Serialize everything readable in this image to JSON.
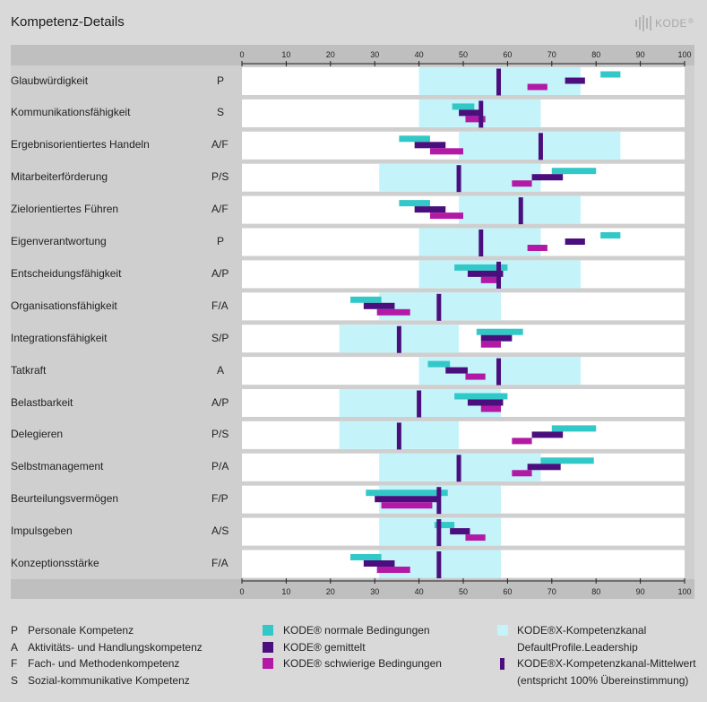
{
  "title": "Kompetenz-Details",
  "logo_text": "KODE",
  "logo_sup": "®",
  "colors": {
    "panel": "#cfcfcf",
    "axis_bar": "#bfbfbf",
    "row_bg": "#ffffff",
    "channel": "#c4f4fa",
    "normal": "#33c8c8",
    "average": "#4b0f7d",
    "difficult": "#b21aa6",
    "channel_mean": "#4b0f7d"
  },
  "chart_data": {
    "type": "bar",
    "xlim": [
      0,
      100
    ],
    "ticks": [
      "0",
      "10",
      "20",
      "30",
      "40",
      "50",
      "60",
      "70",
      "80",
      "90",
      "100"
    ],
    "rows": [
      {
        "label": "Glaubwürdigkeit",
        "code": "P",
        "channel": [
          40,
          76.5
        ],
        "mean": 58,
        "normal": [
          81,
          85.5
        ],
        "average": [
          73,
          77.5
        ],
        "difficult": [
          64.5,
          69
        ]
      },
      {
        "label": "Kommunikationsfähigkeit",
        "code": "S",
        "channel": [
          40,
          67.5
        ],
        "mean": 54,
        "normal": [
          47.5,
          52.5
        ],
        "average": [
          49,
          54
        ],
        "difficult": [
          50.5,
          55
        ]
      },
      {
        "label": "Ergebnisorientiertes Handeln",
        "code": "A/F",
        "channel": [
          49,
          85.5
        ],
        "mean": 67.5,
        "normal": [
          35.5,
          42.5
        ],
        "average": [
          39,
          46
        ],
        "difficult": [
          42.5,
          50
        ]
      },
      {
        "label": "Mitarbeiterförderung",
        "code": "P/S",
        "channel": [
          31,
          67.5
        ],
        "mean": 49,
        "normal": [
          70,
          80
        ],
        "average": [
          65.5,
          72.5
        ],
        "difficult": [
          61,
          65.5
        ]
      },
      {
        "label": "Zielorientiertes Führen",
        "code": "A/F",
        "channel": [
          49,
          76.5
        ],
        "mean": 63,
        "normal": [
          35.5,
          42.5
        ],
        "average": [
          39,
          46
        ],
        "difficult": [
          42.5,
          50
        ]
      },
      {
        "label": "Eigenverantwortung",
        "code": "P",
        "channel": [
          40,
          67.5
        ],
        "mean": 54,
        "normal": [
          81,
          85.5
        ],
        "average": [
          73,
          77.5
        ],
        "difficult": [
          64.5,
          69
        ]
      },
      {
        "label": "Entscheidungsfähigkeit",
        "code": "A/P",
        "channel": [
          40,
          76.5
        ],
        "mean": 58,
        "normal": [
          48,
          60
        ],
        "average": [
          51,
          59
        ],
        "difficult": [
          54,
          58.5
        ]
      },
      {
        "label": "Organisationsfähigkeit",
        "code": "F/A",
        "channel": [
          31,
          58.5
        ],
        "mean": 44.5,
        "normal": [
          24.5,
          31.5
        ],
        "average": [
          27.5,
          34.5
        ],
        "difficult": [
          30.5,
          38
        ]
      },
      {
        "label": "Integrationsfähigkeit",
        "code": "S/P",
        "channel": [
          22,
          49
        ],
        "mean": 35.5,
        "normal": [
          53,
          63.5
        ],
        "average": [
          54,
          61
        ],
        "difficult": [
          54,
          58.5
        ]
      },
      {
        "label": "Tatkraft",
        "code": "A",
        "channel": [
          40,
          76.5
        ],
        "mean": 58,
        "normal": [
          42,
          47
        ],
        "average": [
          46,
          51
        ],
        "difficult": [
          50.5,
          55
        ]
      },
      {
        "label": "Belastbarkeit",
        "code": "A/P",
        "channel": [
          22,
          58.5
        ],
        "mean": 40,
        "normal": [
          48,
          60
        ],
        "average": [
          51,
          59
        ],
        "difficult": [
          54,
          58.5
        ]
      },
      {
        "label": "Delegieren",
        "code": "P/S",
        "channel": [
          22,
          49
        ],
        "mean": 35.5,
        "normal": [
          70,
          80
        ],
        "average": [
          65.5,
          72.5
        ],
        "difficult": [
          61,
          65.5
        ]
      },
      {
        "label": "Selbstmanagement",
        "code": "P/A",
        "channel": [
          31,
          67.5
        ],
        "mean": 49,
        "normal": [
          67.5,
          79.5
        ],
        "average": [
          64.5,
          72
        ],
        "difficult": [
          61,
          65.5
        ]
      },
      {
        "label": "Beurteilungsvermögen",
        "code": "F/P",
        "channel": [
          31,
          58.5
        ],
        "mean": 44.5,
        "normal": [
          28,
          46.5
        ],
        "average": [
          30,
          44.5
        ],
        "difficult": [
          31.5,
          43
        ]
      },
      {
        "label": "Impulsgeben",
        "code": "A/S",
        "channel": [
          31,
          58.5
        ],
        "mean": 44.5,
        "normal": [
          43.5,
          48
        ],
        "average": [
          47,
          51.5
        ],
        "difficult": [
          50.5,
          55
        ]
      },
      {
        "label": "Konzeptionsstärke",
        "code": "F/A",
        "channel": [
          31,
          58.5
        ],
        "mean": 44.5,
        "normal": [
          24.5,
          31.5
        ],
        "average": [
          27.5,
          34.5
        ],
        "difficult": [
          30.5,
          38
        ]
      }
    ]
  },
  "legend_codes": [
    {
      "key": "P",
      "text": "Personale Kompetenz"
    },
    {
      "key": "A",
      "text": "Aktivitäts- und Handlungskompetenz"
    },
    {
      "key": "F",
      "text": "Fach- und Methodenkompetenz"
    },
    {
      "key": "S",
      "text": "Sozial-kommunikative Kompetenz"
    }
  ],
  "legend_series": [
    {
      "name": "KODE® normale Bedingungen",
      "color_key": "normal"
    },
    {
      "name": "KODE® gemittelt",
      "color_key": "average"
    },
    {
      "name": "KODE® schwierige Bedingungen",
      "color_key": "difficult"
    }
  ],
  "legend_channel": {
    "name": "KODE®X-Kompetenzkanal",
    "profile": "DefaultProfile.Leadership",
    "mean_name": "KODE®X-Kompetenzkanal-Mittelwert",
    "mean_note": "(entspricht 100% Übereinstimmung)"
  }
}
